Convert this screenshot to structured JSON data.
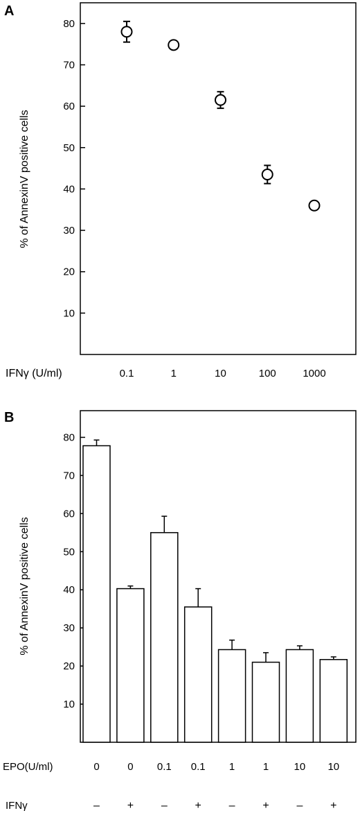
{
  "chart_data": [
    {
      "panel": "A",
      "type": "scatter",
      "ylabel": "% of AnnexinV positive cells",
      "xlabel": "IFNγ (U/ml)",
      "x_scale": "log",
      "yticks": [
        10,
        20,
        30,
        40,
        50,
        60,
        70,
        80
      ],
      "ylim": [
        0,
        85
      ],
      "x_tick_labels": [
        "0.1",
        "1",
        "10",
        "100",
        "1000"
      ],
      "x": [
        0.1,
        1,
        10,
        100,
        1000
      ],
      "y": [
        78,
        74.8,
        61.5,
        43.5,
        36
      ],
      "error": [
        2.5,
        0,
        2,
        2.2,
        0
      ],
      "marker": "open-circle",
      "grid": false
    },
    {
      "panel": "B",
      "type": "bar",
      "ylabel": "% of AnnexinV positive cells",
      "yticks": [
        10,
        20,
        30,
        40,
        50,
        60,
        70,
        80
      ],
      "ylim": [
        0,
        87
      ],
      "row_labels": [
        "EPO(U/ml)",
        "IFNγ"
      ],
      "categories": [
        "0",
        "0",
        "0.1",
        "0.1",
        "1",
        "1",
        "10",
        "10"
      ],
      "ifn_signs": [
        "–",
        "+",
        "–",
        "+",
        "–",
        "+",
        "–",
        "+"
      ],
      "values": [
        77.8,
        40.3,
        55,
        35.5,
        24.3,
        21,
        24.3,
        21.7
      ],
      "error": [
        1.5,
        0.7,
        4.3,
        4.8,
        2.5,
        2.5,
        1,
        0.7
      ],
      "bar_fill": "#ffffff",
      "bar_stroke": "#000000",
      "grid": false
    }
  ]
}
